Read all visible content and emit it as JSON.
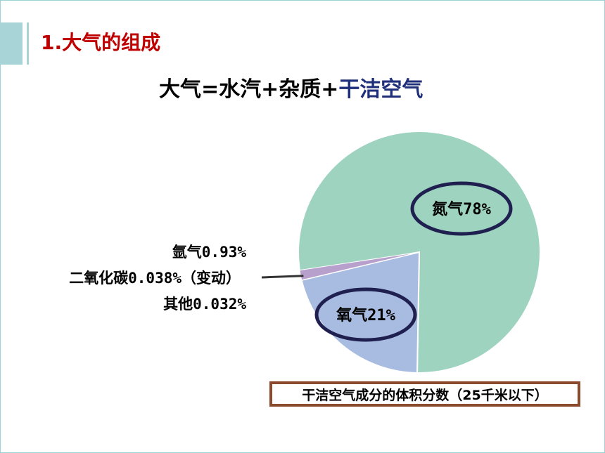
{
  "slide": {
    "heading": "1.大气的组成",
    "formula_prefix": "大气=水汽+杂质+",
    "formula_highlight": "干洁空气",
    "caption": "干洁空气成分的体积分数（25千米以下）"
  },
  "colors": {
    "heading": "#c00000",
    "highlight": "#1f2f7a",
    "nitrogen": "#9ed3c0",
    "oxygen": "#a7bce0",
    "trace": "#b8a0cc",
    "ellipse": "#1f2050",
    "caption_border": "#8b4a2b"
  },
  "chart_data": {
    "type": "pie",
    "slices": [
      {
        "name": "氮气",
        "value": 78,
        "label": "氮气78%"
      },
      {
        "name": "氧气",
        "value": 21,
        "label": "氧气21%"
      },
      {
        "name": "氩气",
        "value": 0.93,
        "label": "氩气0.93%"
      },
      {
        "name": "二氧化碳",
        "value": 0.038,
        "label": "二氧化碳0.038%（变动）"
      },
      {
        "name": "其他",
        "value": 0.032,
        "label": "其他0.032%"
      }
    ]
  }
}
